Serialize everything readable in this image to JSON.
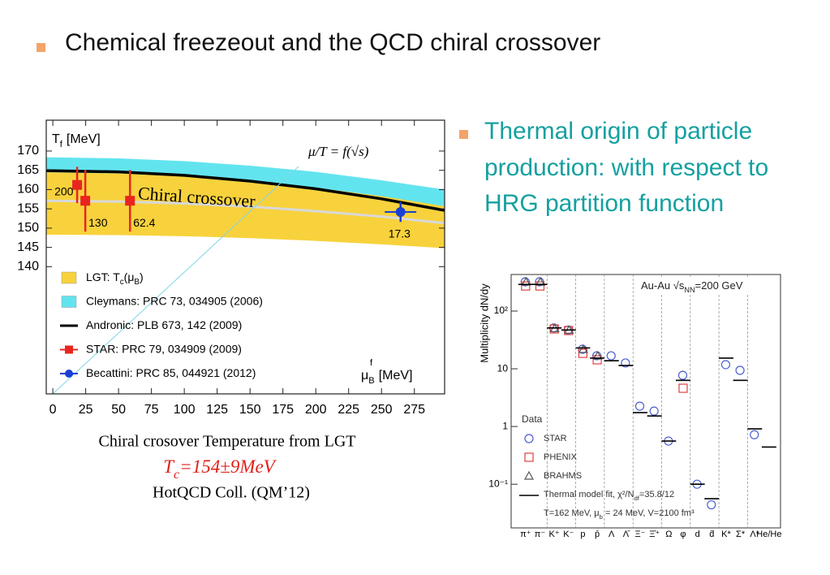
{
  "slide": {
    "title": "Chemical freezeout and the QCD chiral crossover",
    "bullet": "Thermal origin of particle production: with respect to HRG partition function",
    "caption": {
      "line1": "Chiral crosover  Temperature from LGT",
      "formula": [
        "T",
        "c",
        "=154±9MeV"
      ],
      "line3": "HotQCD Coll.  (QM’12)"
    }
  },
  "chart_data": [
    {
      "type": "line",
      "ylabel": [
        "T",
        "f",
        "[MeV]"
      ],
      "xlabel": [
        "μ",
        "B",
        "[MeV]"
      ],
      "xlabel_sup": "f",
      "xlim": [
        -5,
        298
      ],
      "ylim": [
        107,
        178
      ],
      "xticks": [
        0,
        25,
        50,
        75,
        100,
        125,
        150,
        175,
        200,
        225,
        250,
        275
      ],
      "yticks": [
        140,
        145,
        150,
        155,
        160,
        165,
        170
      ],
      "annotations": [
        "μ/T = f(√s)",
        "Chiral  crossover"
      ],
      "series": [
        {
          "kind": "band",
          "name": [
            "LGT: T",
            "c",
            "(μ",
            "B",
            ")"
          ],
          "color": "#f8d23c",
          "x": [
            -5,
            50,
            100,
            150,
            200,
            250,
            298
          ],
          "upper": [
            167.9,
            167.6,
            166.7,
            165.3,
            163.4,
            160.9,
            158.1
          ],
          "lower": [
            148.3,
            148.2,
            147.9,
            147.4,
            146.7,
            145.8,
            144.8
          ]
        },
        {
          "kind": "band",
          "name": [
            "Cleymans: PRC 73, 034905 (2006)"
          ],
          "color": "#62e4ef",
          "x": [
            -5,
            50,
            100,
            150,
            200,
            250,
            298
          ],
          "upper": [
            168.4,
            168.1,
            167.4,
            166.2,
            164.6,
            162.4,
            160.0
          ],
          "lower": [
            164.5,
            164.2,
            163.4,
            162.2,
            160.5,
            158.3,
            155.7
          ]
        },
        {
          "kind": "line",
          "name": [
            "Andronic: PLB 673, 142 (2009)"
          ],
          "color": "#000000",
          "x": [
            -5,
            50,
            100,
            150,
            200,
            250,
            298
          ],
          "values": [
            164.9,
            164.6,
            163.7,
            162.2,
            160.2,
            157.6,
            154.6
          ]
        },
        {
          "kind": "line",
          "color": "#d8d8d8",
          "x": [
            -5,
            50,
            100,
            150,
            200,
            250,
            298
          ],
          "values": [
            157.1,
            156.9,
            156.4,
            155.6,
            154.4,
            153.0,
            151.3
          ]
        },
        {
          "kind": "points",
          "name": [
            "STAR: PRC 79, 034909 (2009)"
          ],
          "color": "#e8251f",
          "marker": "square",
          "x": [
            18.5,
            24.7,
            58.7
          ],
          "values": [
            161.2,
            157.1,
            157.1
          ],
          "errors": [
            4.7,
            8,
            8
          ],
          "labels": [
            "200",
            "130",
            "62.4"
          ]
        },
        {
          "kind": "points",
          "name": [
            "Becattini: PRC 85, 044921 (2012)"
          ],
          "color": "#1a3fd6",
          "marker": "circle",
          "x": [
            264.5
          ],
          "values": [
            154.2
          ],
          "errors": [
            2.6
          ],
          "xerrors": [
            12
          ],
          "labels": [
            "17.3"
          ]
        }
      ]
    },
    {
      "type": "scatter",
      "log": true,
      "ylabel": "Multiplicity dN/dy",
      "categories": [
        "π⁺",
        "π⁻",
        "K⁺",
        "K⁻",
        "p",
        "p̄",
        "Λ",
        "Λ̄",
        "Ξ⁻",
        "Ξ̄⁺",
        "Ω",
        "φ",
        "d",
        "d̄",
        "K*",
        "Σ*",
        "Λ*",
        "He/He"
      ],
      "ylim": [
        0.0175,
        430
      ],
      "yticks": [
        {
          "value": 0.1,
          "label": "10⁻¹"
        },
        1,
        10,
        {
          "value": 100,
          "label": "10²"
        }
      ],
      "annotations": [
        [
          "Au-Au  √s",
          "NN",
          "=200 GeV"
        ],
        [
          "T=162 MeV, μ",
          "b",
          " = 24 MeV, V=2100 fm³"
        ]
      ],
      "legend_title": "Data",
      "series": [
        {
          "kind": "points",
          "name": [
            "STAR"
          ],
          "color": "#4a5fd0",
          "marker": "circle",
          "values": [
            321,
            321,
            51,
            47,
            21.8,
            16.8,
            16.8,
            12.6,
            2.25,
            1.85,
            0.56,
            7.7,
            0.1,
            0.044,
            11.8,
            9.4,
            0.72,
            null
          ]
        },
        {
          "kind": "points",
          "name": [
            "PHENIX"
          ],
          "color": "#e04040",
          "marker": "square",
          "values": [
            272,
            272,
            49,
            46,
            18.5,
            14.3,
            null,
            null,
            null,
            null,
            null,
            4.6,
            null,
            null,
            null,
            null,
            null,
            null
          ]
        },
        {
          "kind": "points",
          "name": [
            "BRAHMS"
          ],
          "color": "#555555",
          "marker": "triangle",
          "values": [
            321,
            321,
            50,
            47,
            21.8,
            16.8,
            null,
            null,
            null,
            null,
            null,
            null,
            null,
            null,
            null,
            null,
            null,
            null
          ]
        },
        {
          "kind": "level",
          "name": [
            "Thermal model fit, χ²/N",
            "df",
            "=35.8/12"
          ],
          "color": "#000000",
          "values": [
            290,
            290,
            51,
            47,
            23,
            15.3,
            13.8,
            11.4,
            1.74,
            1.52,
            0.56,
            6.3,
            0.1,
            0.056,
            15.3,
            6.3,
            0.91,
            0.44
          ]
        }
      ]
    }
  ]
}
